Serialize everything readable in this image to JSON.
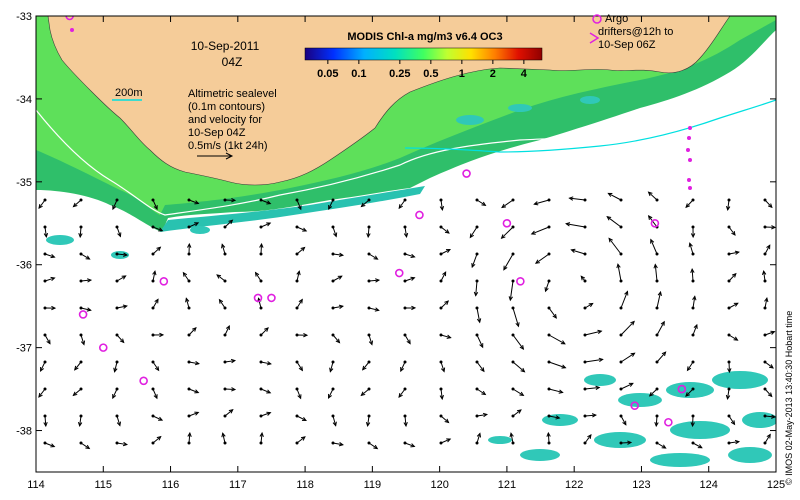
{
  "map": {
    "title_date": "10-Sep-2011",
    "title_time": "04Z",
    "colorbar": {
      "title": "MODIS Chl-a mg/m3 v6.4 OC3",
      "ticks": [
        {
          "label": "0.05",
          "value": 0.05
        },
        {
          "label": "0.1",
          "value": 0.1
        },
        {
          "label": "0.25",
          "value": 0.25
        },
        {
          "label": "0.5",
          "value": 0.5
        },
        {
          "label": "1",
          "value": 1
        },
        {
          "label": "2",
          "value": 2
        },
        {
          "label": "4",
          "value": 4
        }
      ],
      "stops": [
        "#1a0080",
        "#0030ff",
        "#00b0ff",
        "#00e0c0",
        "#40ff60",
        "#c0ff30",
        "#ffe000",
        "#ff8000",
        "#e01000",
        "#900000"
      ]
    },
    "isobath_label": "200m",
    "annotation_lines": [
      "Altimetric sealevel",
      "(0.1m contours)",
      "and velocity for",
      "10-Sep 04Z",
      "0.5m/s (1kt 24h)"
    ],
    "legend": {
      "argo_label": "Argo",
      "drifter_lines": [
        "drifters@12h to",
        "10-Sep 06Z"
      ],
      "argo_color": "#e020e0"
    },
    "credit": "© IMOS 02-May-2013 13:40:30 Hobart time",
    "x_ticks": [
      {
        "label": "114",
        "value": 114
      },
      {
        "label": "115",
        "value": 115
      },
      {
        "label": "116",
        "value": 116
      },
      {
        "label": "117",
        "value": 117
      },
      {
        "label": "118",
        "value": 118
      },
      {
        "label": "119",
        "value": 119
      },
      {
        "label": "120",
        "value": 120
      },
      {
        "label": "121",
        "value": 121
      },
      {
        "label": "122",
        "value": 122
      },
      {
        "label": "123",
        "value": 123
      },
      {
        "label": "124",
        "value": 124
      },
      {
        "label": "125",
        "value": 125
      }
    ],
    "y_ticks": [
      {
        "label": "-33",
        "value": -33
      },
      {
        "label": "-34",
        "value": -34
      },
      {
        "label": "-35",
        "value": -35
      },
      {
        "label": "-36",
        "value": -36
      },
      {
        "label": "-37",
        "value": -37
      },
      {
        "label": "-38",
        "value": -38
      }
    ],
    "lon_range": [
      114,
      125
    ],
    "lat_range": [
      -38.5,
      -33
    ],
    "land_color": "#f5cc99",
    "argo_floats": [
      {
        "lon": 114.5,
        "lat": -33.0
      },
      {
        "lon": 119.7,
        "lat": -35.4
      },
      {
        "lon": 120.4,
        "lat": -34.9
      },
      {
        "lon": 121.0,
        "lat": -35.5
      },
      {
        "lon": 123.2,
        "lat": -35.5
      },
      {
        "lon": 115.9,
        "lat": -36.2
      },
      {
        "lon": 117.3,
        "lat": -36.4
      },
      {
        "lon": 117.5,
        "lat": -36.4
      },
      {
        "lon": 119.4,
        "lat": -36.1
      },
      {
        "lon": 121.2,
        "lat": -36.2
      },
      {
        "lon": 114.7,
        "lat": -36.6
      },
      {
        "lon": 115.0,
        "lat": -37.0
      },
      {
        "lon": 115.6,
        "lat": -37.4
      },
      {
        "lon": 123.6,
        "lat": -37.5
      },
      {
        "lon": 122.9,
        "lat": -37.7
      },
      {
        "lon": 123.4,
        "lat": -37.9
      }
    ]
  }
}
